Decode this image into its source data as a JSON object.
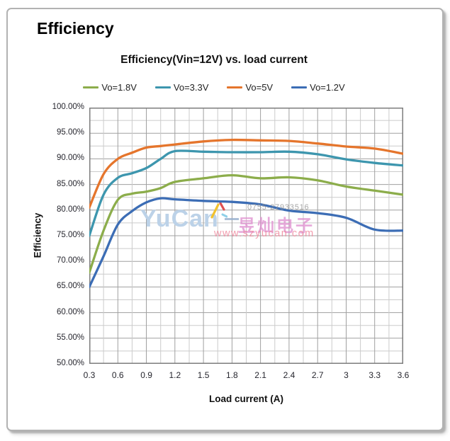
{
  "page": {
    "heading": "Efficiency"
  },
  "chart_data": {
    "type": "line",
    "title": "Efficiency(Vin=12V) vs. load current",
    "xlabel": "Load current (A)",
    "ylabel": "Efficiency",
    "xlim": [
      0.3,
      3.6
    ],
    "ylim": [
      50,
      100
    ],
    "x_major_step": 0.3,
    "x_minor_step": 0.15,
    "y_major_step": 5,
    "y_minor_step": 2.5,
    "grid": "major and minor gridlines on both axes",
    "legend_position": "top",
    "x_tick_labels": [
      "0.3",
      "0.6",
      "0.9",
      "1.2",
      "1.5",
      "1.8",
      "2.1",
      "2.4",
      "2.7",
      "3",
      "3.3",
      "3.6"
    ],
    "y_tick_labels": [
      "100.00%",
      "95.00%",
      "90.00%",
      "85.00%",
      "80.00%",
      "75.00%",
      "70.00%",
      "65.00%",
      "60.00%",
      "55.00%",
      "50.00%"
    ],
    "x": [
      0.3,
      0.45,
      0.6,
      0.75,
      0.9,
      1.05,
      1.2,
      1.5,
      1.8,
      2.1,
      2.4,
      2.7,
      3.0,
      3.3,
      3.6
    ],
    "series": [
      {
        "name": "Vo=1.8V",
        "color": "#8CAD4B",
        "values": [
          67.8,
          76.0,
          82.0,
          83.2,
          83.6,
          84.3,
          85.5,
          86.2,
          86.8,
          86.2,
          86.4,
          85.8,
          84.6,
          83.8,
          83.0
        ]
      },
      {
        "name": "Vo=3.3V",
        "color": "#3D96AE",
        "values": [
          75.0,
          83.0,
          86.3,
          87.2,
          88.2,
          90.0,
          91.5,
          91.4,
          91.3,
          91.3,
          91.4,
          90.9,
          89.9,
          89.2,
          88.7
        ]
      },
      {
        "name": "Vo=5V",
        "color": "#E5752C",
        "values": [
          80.5,
          87.0,
          90.0,
          91.2,
          92.2,
          92.5,
          92.8,
          93.4,
          93.7,
          93.6,
          93.5,
          93.0,
          92.4,
          92.0,
          91.0
        ]
      },
      {
        "name": "Vo=1.2V",
        "color": "#3C6DB5",
        "values": [
          65.0,
          71.0,
          77.2,
          79.8,
          81.5,
          82.3,
          82.1,
          81.8,
          81.6,
          81.1,
          79.9,
          79.4,
          78.5,
          76.2,
          76.0
        ]
      }
    ]
  },
  "watermark": {
    "logo_text": "YuCan",
    "cn_text": "昱灿电子",
    "url_text": "www.szyucan.com",
    "phone_text": "0755-27933516"
  },
  "style_colors": {
    "grid_major": "#a0a0a0",
    "grid_minor": "#cbcbcb",
    "plot_border": "#7d7d7d"
  }
}
